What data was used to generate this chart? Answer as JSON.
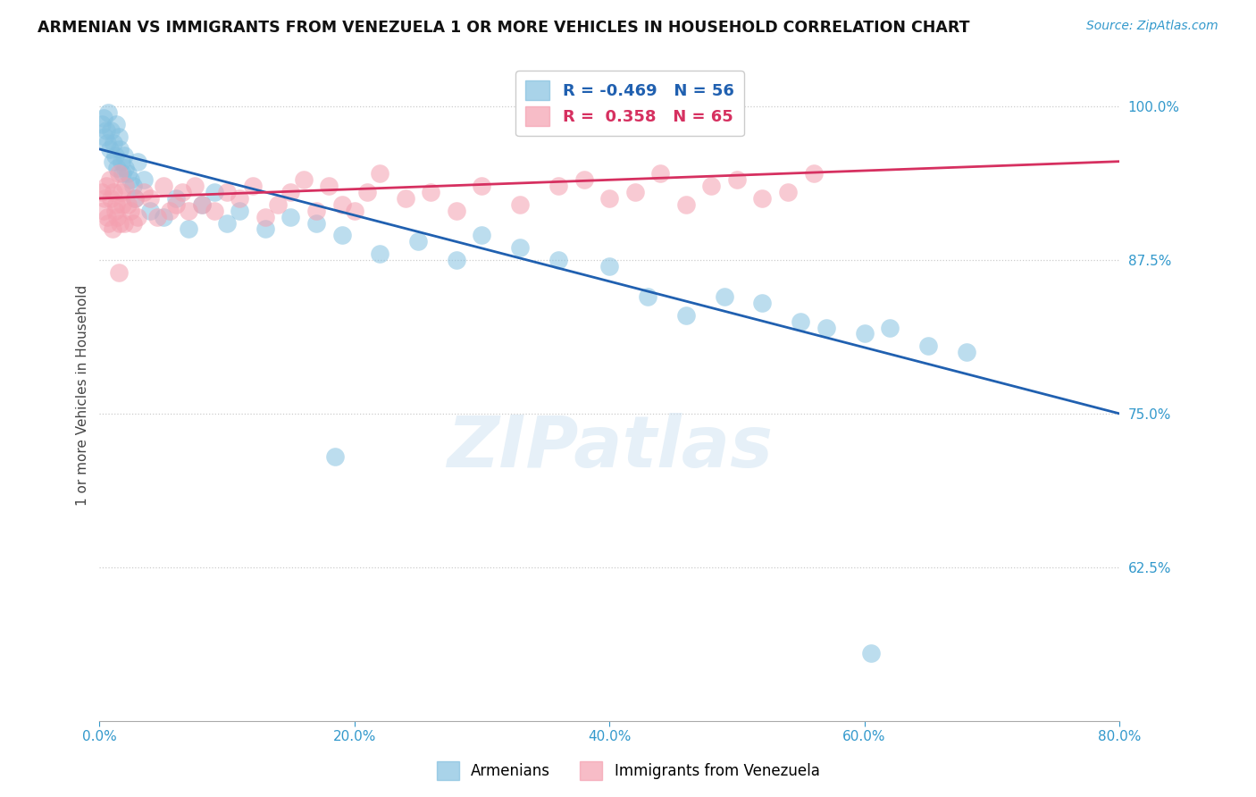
{
  "title": "ARMENIAN VS IMMIGRANTS FROM VENEZUELA 1 OR MORE VEHICLES IN HOUSEHOLD CORRELATION CHART",
  "source": "Source: ZipAtlas.com",
  "ylabel": "1 or more Vehicles in Household",
  "armenian_R": -0.469,
  "armenian_N": 56,
  "venezuela_R": 0.358,
  "venezuela_N": 65,
  "armenian_color": "#85c1e0",
  "venezuela_color": "#f4a0b0",
  "armenian_line_color": "#2060b0",
  "venezuela_line_color": "#d63060",
  "legend_label_armenian": "Armenians",
  "legend_label_venezuela": "Immigrants from Venezuela",
  "xlim": [
    0.0,
    80.0
  ],
  "ylim": [
    50.0,
    103.0
  ],
  "ytick_vals": [
    62.5,
    75.0,
    87.5,
    100.0
  ],
  "xtick_vals": [
    0,
    20,
    40,
    60,
    80
  ],
  "arm_line_x0": 0,
  "arm_line_x1": 80,
  "arm_line_y0": 96.5,
  "arm_line_y1": 75.0,
  "ven_line_x0": 0,
  "ven_line_x1": 80,
  "ven_line_y0": 92.5,
  "ven_line_y1": 95.5,
  "armenian_pts_x": [
    0.2,
    0.3,
    0.4,
    0.5,
    0.6,
    0.7,
    0.8,
    0.9,
    1.0,
    1.1,
    1.2,
    1.3,
    1.4,
    1.5,
    1.6,
    1.7,
    1.8,
    1.9,
    2.0,
    2.2,
    2.4,
    2.6,
    2.8,
    3.0,
    3.5,
    4.0,
    5.0,
    6.0,
    7.0,
    8.0,
    9.0,
    10.0,
    11.0,
    13.0,
    15.0,
    17.0,
    19.0,
    22.0,
    25.0,
    28.0,
    30.0,
    33.0,
    36.0,
    40.0,
    43.0,
    46.0,
    49.0,
    52.0,
    55.0,
    57.0,
    60.0,
    62.0,
    65.0,
    68.0,
    18.5,
    60.5
  ],
  "armenian_pts_y": [
    98.5,
    99.0,
    97.5,
    98.0,
    97.0,
    99.5,
    96.5,
    98.0,
    95.5,
    97.0,
    96.0,
    98.5,
    95.0,
    97.5,
    96.5,
    95.5,
    94.5,
    96.0,
    95.0,
    94.5,
    94.0,
    93.5,
    92.5,
    95.5,
    94.0,
    91.5,
    91.0,
    92.5,
    90.0,
    92.0,
    93.0,
    90.5,
    91.5,
    90.0,
    91.0,
    90.5,
    89.5,
    88.0,
    89.0,
    87.5,
    89.5,
    88.5,
    87.5,
    87.0,
    84.5,
    83.0,
    84.5,
    84.0,
    82.5,
    82.0,
    81.5,
    82.0,
    80.5,
    80.0,
    71.5,
    55.5
  ],
  "venezuela_pts_x": [
    0.2,
    0.3,
    0.4,
    0.5,
    0.6,
    0.7,
    0.8,
    0.9,
    1.0,
    1.1,
    1.2,
    1.3,
    1.4,
    1.5,
    1.6,
    1.7,
    1.8,
    1.9,
    2.0,
    2.2,
    2.4,
    2.6,
    2.8,
    3.0,
    3.5,
    4.0,
    4.5,
    5.0,
    5.5,
    6.0,
    6.5,
    7.0,
    7.5,
    8.0,
    9.0,
    10.0,
    11.0,
    12.0,
    13.0,
    14.0,
    15.0,
    16.0,
    17.0,
    18.0,
    19.0,
    20.0,
    21.0,
    22.0,
    24.0,
    26.0,
    28.0,
    30.0,
    33.0,
    36.0,
    38.0,
    40.0,
    42.0,
    44.0,
    46.0,
    48.0,
    50.0,
    52.0,
    54.0,
    56.0,
    1.5
  ],
  "venezuela_pts_y": [
    93.0,
    91.5,
    92.5,
    93.5,
    91.0,
    90.5,
    94.0,
    92.5,
    90.0,
    93.0,
    91.5,
    92.0,
    91.0,
    94.5,
    90.5,
    93.0,
    92.0,
    90.5,
    93.5,
    92.0,
    91.5,
    90.5,
    92.5,
    91.0,
    93.0,
    92.5,
    91.0,
    93.5,
    91.5,
    92.0,
    93.0,
    91.5,
    93.5,
    92.0,
    91.5,
    93.0,
    92.5,
    93.5,
    91.0,
    92.0,
    93.0,
    94.0,
    91.5,
    93.5,
    92.0,
    91.5,
    93.0,
    94.5,
    92.5,
    93.0,
    91.5,
    93.5,
    92.0,
    93.5,
    94.0,
    92.5,
    93.0,
    94.5,
    92.0,
    93.5,
    94.0,
    92.5,
    93.0,
    94.5,
    86.5
  ]
}
